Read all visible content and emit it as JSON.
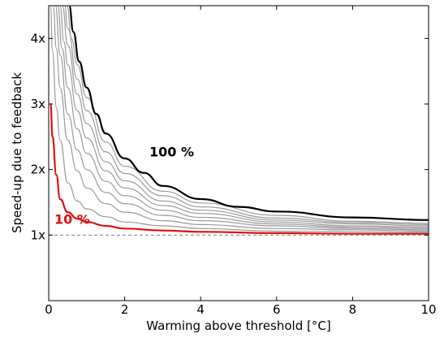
{
  "chart_data": {
    "type": "line",
    "xlabel": "Warming above threshold  [°C]",
    "ylabel": "Speed-up due to feedback",
    "xlim": [
      0,
      10
    ],
    "ylim": [
      0,
      4.5
    ],
    "xticks": [
      0,
      2,
      4,
      6,
      8,
      10
    ],
    "xtick_labels": [
      "0",
      "2",
      "4",
      "6",
      "8",
      "10"
    ],
    "yticks": [
      1,
      2,
      3,
      4
    ],
    "ytick_labels": [
      "1x",
      "2x",
      "3x",
      "4x"
    ],
    "grid": false,
    "reference_line": {
      "y": 1,
      "style": "dashed",
      "color": "#808080"
    },
    "series": [
      {
        "name": "10 %",
        "fraction": 0.1,
        "color": "#dd1111",
        "width": 2.2,
        "x": [
          0.05,
          0.1,
          0.2,
          0.3,
          0.5,
          0.75,
          1,
          1.5,
          2,
          3,
          4,
          6,
          8,
          10
        ],
        "y": [
          3.0,
          2.5,
          1.92,
          1.55,
          1.35,
          1.25,
          1.2,
          1.14,
          1.1,
          1.07,
          1.05,
          1.03,
          1.02,
          1.02
        ]
      },
      {
        "fraction": 0.2,
        "color": "#9a9a9a",
        "width": 1.2,
        "x": [
          0.05,
          0.1,
          0.2,
          0.3,
          0.5,
          0.75,
          1,
          1.5,
          2,
          3,
          4,
          6,
          8,
          10
        ],
        "y": [
          4.5,
          3.8,
          2.95,
          2.45,
          1.8,
          1.52,
          1.4,
          1.28,
          1.2,
          1.14,
          1.1,
          1.06,
          1.05,
          1.04
        ]
      },
      {
        "fraction": 0.3,
        "color": "#9a9a9a",
        "width": 1.2,
        "x": [
          0.12,
          0.2,
          0.3,
          0.5,
          0.75,
          1,
          1.5,
          2,
          3,
          4,
          6,
          8,
          10
        ],
        "y": [
          4.5,
          3.85,
          3.25,
          2.45,
          1.98,
          1.72,
          1.48,
          1.35,
          1.22,
          1.16,
          1.1,
          1.08,
          1.06
        ]
      },
      {
        "fraction": 0.4,
        "color": "#9a9a9a",
        "width": 1.2,
        "x": [
          0.18,
          0.3,
          0.5,
          0.75,
          1,
          1.5,
          2,
          3,
          4,
          6,
          8,
          10
        ],
        "y": [
          4.5,
          3.75,
          2.85,
          2.3,
          2.0,
          1.65,
          1.48,
          1.3,
          1.22,
          1.14,
          1.1,
          1.08
        ]
      },
      {
        "fraction": 0.5,
        "color": "#9a9a9a",
        "width": 1.2,
        "x": [
          0.24,
          0.35,
          0.5,
          0.75,
          1,
          1.5,
          2,
          3,
          4,
          6,
          8,
          10
        ],
        "y": [
          4.5,
          3.85,
          3.25,
          2.62,
          2.25,
          1.82,
          1.6,
          1.38,
          1.27,
          1.17,
          1.12,
          1.1
        ]
      },
      {
        "fraction": 0.6,
        "color": "#9a9a9a",
        "width": 1.2,
        "x": [
          0.3,
          0.4,
          0.5,
          0.75,
          1,
          1.5,
          2,
          3,
          4,
          6,
          8,
          10
        ],
        "y": [
          4.5,
          3.95,
          3.6,
          2.9,
          2.48,
          1.98,
          1.72,
          1.45,
          1.33,
          1.2,
          1.14,
          1.12
        ]
      },
      {
        "fraction": 0.7,
        "color": "#9a9a9a",
        "width": 1.2,
        "x": [
          0.36,
          0.5,
          0.75,
          1,
          1.5,
          2,
          3,
          4,
          6,
          8,
          10
        ],
        "y": [
          4.5,
          3.9,
          3.15,
          2.7,
          2.12,
          1.83,
          1.52,
          1.38,
          1.23,
          1.17,
          1.14
        ]
      },
      {
        "fraction": 0.8,
        "color": "#9a9a9a",
        "width": 1.2,
        "x": [
          0.42,
          0.5,
          0.75,
          1,
          1.5,
          2,
          3,
          4,
          6,
          8,
          10
        ],
        "y": [
          4.5,
          4.15,
          3.38,
          2.9,
          2.27,
          1.94,
          1.6,
          1.43,
          1.26,
          1.19,
          1.16
        ]
      },
      {
        "fraction": 0.9,
        "color": "#9a9a9a",
        "width": 1.2,
        "x": [
          0.48,
          0.6,
          0.75,
          1,
          1.5,
          2,
          3,
          4,
          6,
          8,
          10
        ],
        "y": [
          4.5,
          4.0,
          3.6,
          3.1,
          2.42,
          2.05,
          1.67,
          1.49,
          1.3,
          1.21,
          1.18
        ]
      },
      {
        "name": "100 %",
        "fraction": 1.0,
        "color": "#000000",
        "width": 2.2,
        "x": [
          0.54,
          0.65,
          0.8,
          1,
          1.25,
          1.5,
          2,
          2.5,
          3,
          4,
          5,
          6,
          8,
          10
        ],
        "y": [
          4.5,
          4.1,
          3.65,
          3.25,
          2.85,
          2.55,
          2.17,
          1.95,
          1.75,
          1.55,
          1.43,
          1.36,
          1.27,
          1.23
        ]
      }
    ],
    "annotations": [
      {
        "text": "100 %",
        "x": 2.65,
        "y": 2.2,
        "color": "#000000"
      },
      {
        "text": "10 %",
        "x": 0.15,
        "y": 1.17,
        "color": "#dd1111"
      }
    ]
  }
}
